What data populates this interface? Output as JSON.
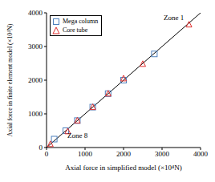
{
  "chart_data": {
    "type": "scatter",
    "x_label": "Axial force in simplified model (×10⁴N)",
    "y_label": "Axial force in finite element model (×10⁴N)",
    "annotations": [
      "Zone 1",
      "Zone 8"
    ],
    "xlim": [
      0,
      4000
    ],
    "ylim": [
      0,
      4000
    ],
    "xticks": [
      0,
      1000,
      2000,
      3000,
      4000
    ],
    "yticks": [
      0,
      1000,
      2000,
      3000,
      4000
    ],
    "legend": "upper left",
    "series": [
      {
        "name": "Mega column",
        "color": "#4f81bd",
        "marker": "square",
        "x": [
          200,
          500,
          800,
          1200,
          1600,
          2000,
          2800
        ],
        "values": [
          250,
          500,
          800,
          1200,
          1600,
          2000,
          2780
        ]
      },
      {
        "name": "Core tube",
        "color": "#e0302f",
        "marker": "triangle",
        "x": [
          100,
          550,
          800,
          1200,
          1600,
          2000,
          2500,
          3700
        ],
        "values": [
          100,
          480,
          800,
          1200,
          1600,
          2050,
          2480,
          3650
        ]
      },
      {
        "type": "line",
        "color": "#000000",
        "line_style": "solid",
        "x": [
          0,
          4000
        ],
        "values": [
          0,
          4000
        ]
      }
    ]
  }
}
